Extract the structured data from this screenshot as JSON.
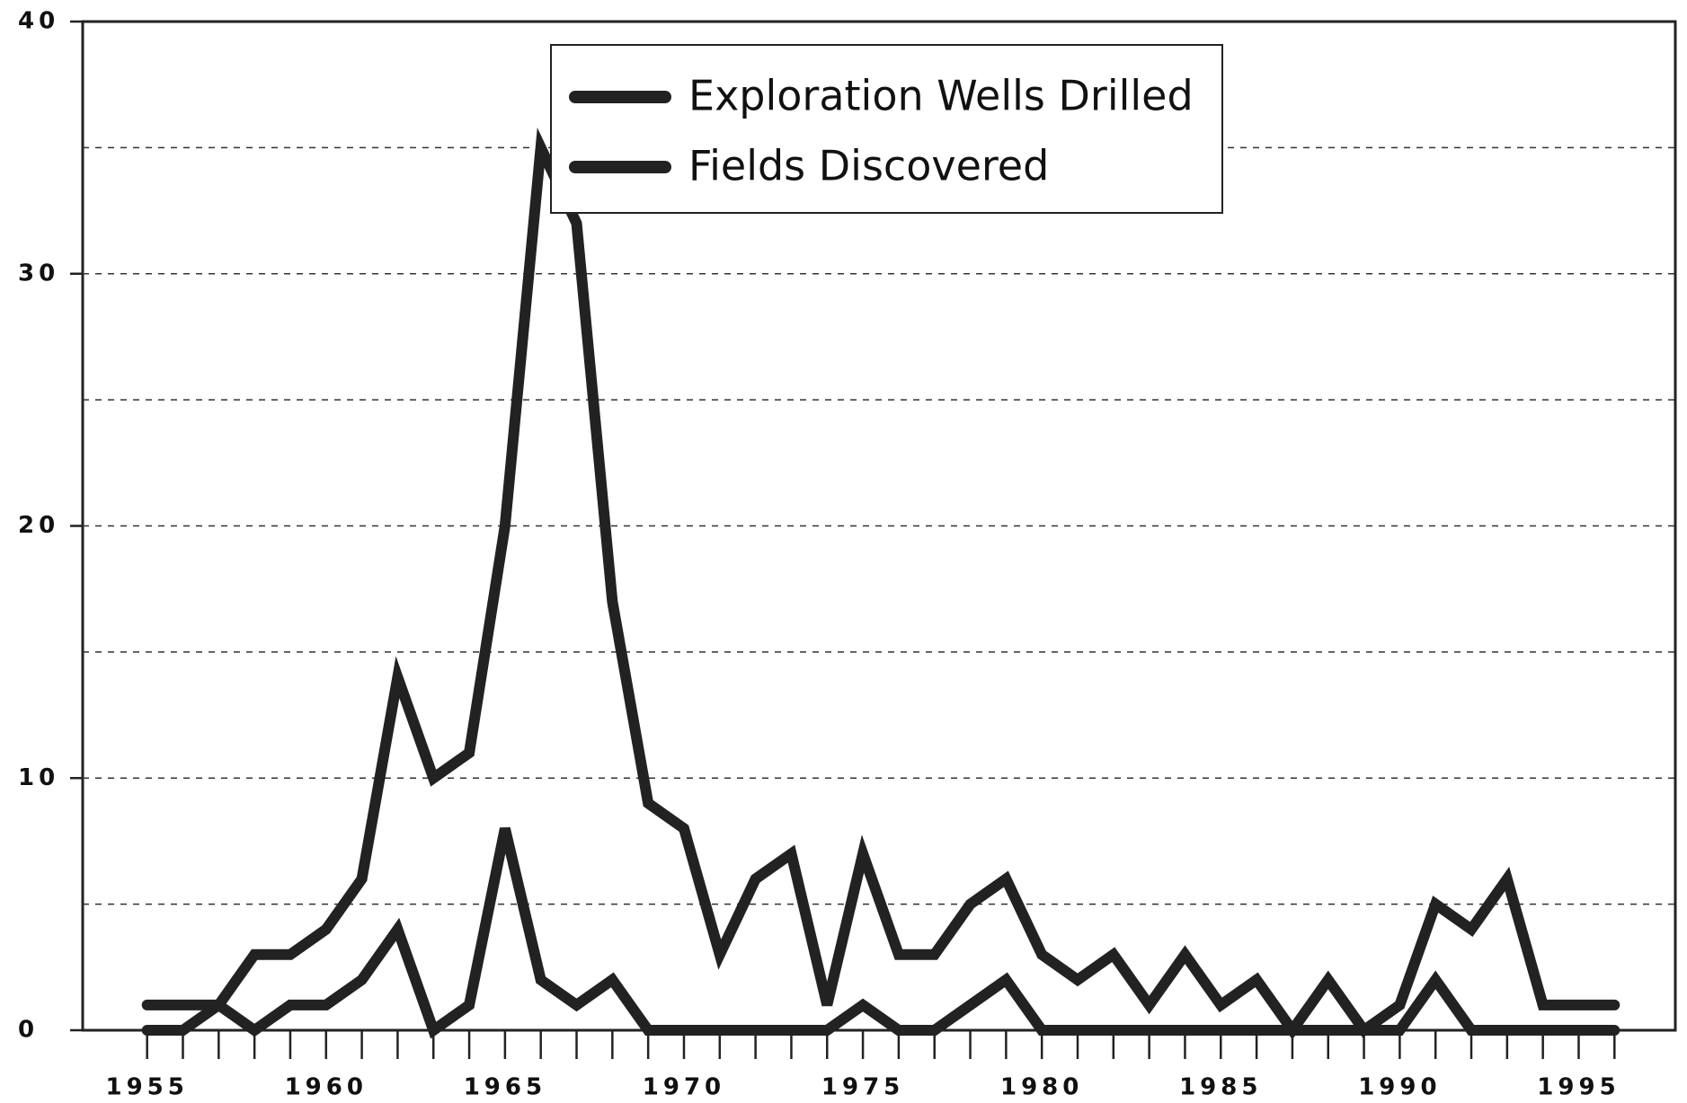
{
  "chart_data": {
    "type": "line",
    "x": [
      1955,
      1956,
      1957,
      1958,
      1959,
      1960,
      1961,
      1962,
      1963,
      1964,
      1965,
      1966,
      1967,
      1968,
      1969,
      1970,
      1971,
      1972,
      1973,
      1974,
      1975,
      1976,
      1977,
      1978,
      1979,
      1980,
      1981,
      1982,
      1983,
      1984,
      1985,
      1986,
      1987,
      1988,
      1989,
      1990,
      1991,
      1992,
      1993,
      1994,
      1995,
      1996
    ],
    "series": [
      {
        "name": "Exploration Wells Drilled",
        "color": "#222222",
        "values": [
          1,
          1,
          1,
          3,
          3,
          4,
          6,
          14,
          10,
          11,
          20,
          35,
          32,
          17,
          9,
          8,
          3,
          6,
          7,
          1,
          7,
          3,
          3,
          5,
          6,
          3,
          2,
          3,
          1,
          3,
          1,
          2,
          0,
          2,
          0,
          1,
          5,
          4,
          6,
          1,
          1,
          1
        ]
      },
      {
        "name": "Fields Discovered",
        "color": "#222222",
        "values": [
          0,
          0,
          1,
          0,
          1,
          1,
          2,
          4,
          0,
          1,
          8,
          2,
          1,
          2,
          0,
          0,
          0,
          0,
          0,
          0,
          1,
          0,
          0,
          1,
          2,
          0,
          0,
          0,
          0,
          0,
          0,
          0,
          0,
          0,
          0,
          0,
          2,
          0,
          0,
          0,
          0,
          0
        ]
      }
    ],
    "xlim": [
      1953.2,
      1997.7
    ],
    "xticks": [
      1955,
      1960,
      1965,
      1970,
      1975,
      1980,
      1985,
      1990,
      1995
    ],
    "ylim": [
      0,
      40
    ],
    "yticks": [
      0,
      10,
      20,
      30,
      40
    ],
    "grid_lines": [
      5,
      10,
      15,
      20,
      25,
      30,
      35
    ],
    "grid": true
  }
}
